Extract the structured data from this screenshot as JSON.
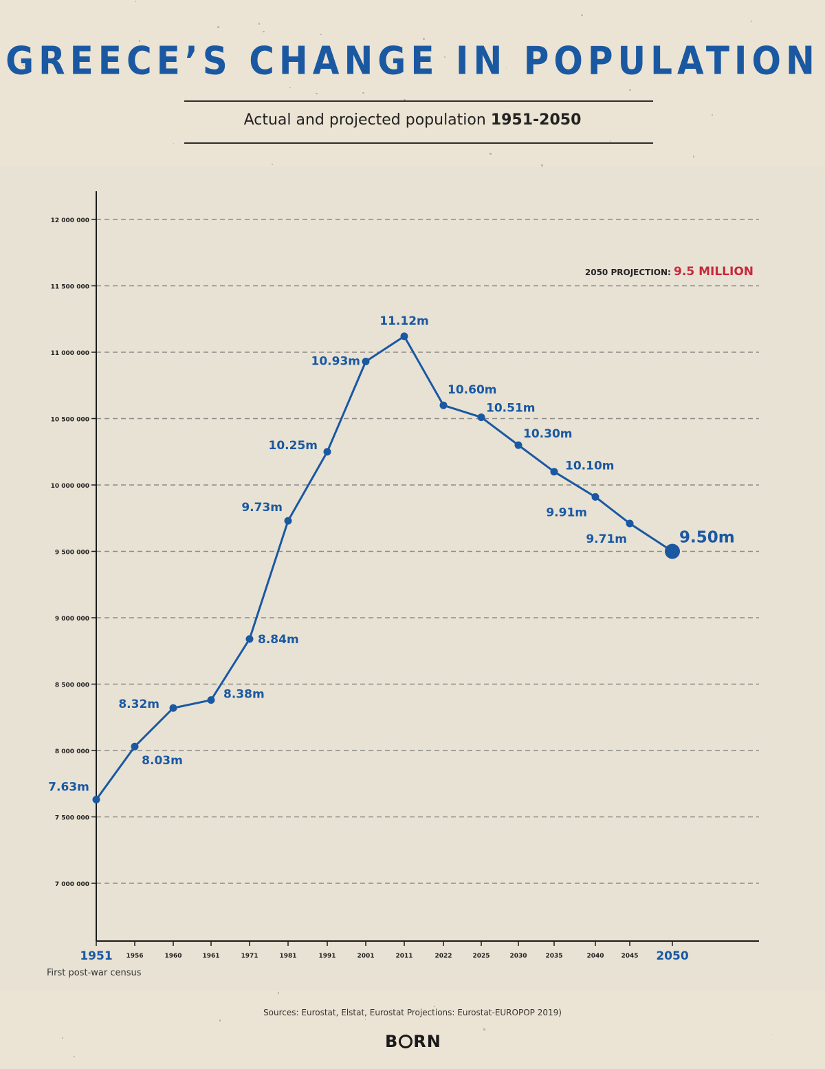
{
  "header": {
    "title": "GREECE’S CHANGE IN POPULATION",
    "subtitle_prefix": "Actual and projected population",
    "subtitle_years": "1951-2050"
  },
  "projection_note": {
    "label": "2050 PROJECTION:",
    "value": "9.5 MILLION"
  },
  "first_census_note": "First post-war census",
  "sources": "Sources: Eurostat, Elstat, Eurostat Projections: Eurostat-EUROPOP 2019)",
  "logo": {
    "pre": "B",
    "post": "RN"
  },
  "colors": {
    "line": "#1a58a2",
    "accent": "#c7283a",
    "axis": "#1a1a1a",
    "grid": "#8c8a85",
    "background": "#ebe3d3"
  },
  "chart_data": {
    "type": "line",
    "categories": [
      "1951",
      "1956",
      "1960",
      "1961",
      "1971",
      "1981",
      "1991",
      "2001",
      "2011",
      "2022",
      "2025",
      "2030",
      "2035",
      "2040",
      "2045",
      "2050"
    ],
    "series": [
      {
        "values": [
          7630000,
          8030000,
          8320000,
          8380000,
          8840000,
          9730000,
          10250000,
          10930000,
          11120000,
          10600000,
          10510000,
          10300000,
          10100000,
          9910000,
          9710000,
          9500000
        ],
        "data_labels": [
          "7.63m",
          "8.03m",
          "8.32m",
          "8.38m",
          "8.84m",
          "9.73m",
          "10.25m",
          "10.93m",
          "11.12m",
          "10.60m",
          "10.51m",
          "10.30m",
          "10.10m",
          "9.91m",
          "9.71m",
          "9.50m"
        ]
      }
    ],
    "yticks": [
      7000000,
      7500000,
      8000000,
      8500000,
      9000000,
      9500000,
      10000000,
      10500000,
      11000000,
      11500000,
      12000000
    ],
    "ytick_labels": [
      "7 000 000",
      "7 500 000",
      "8 000 000",
      "8 500 000",
      "9 000 000",
      "9 500 000",
      "10 000 000",
      "10 500 000",
      "11 000 000",
      "11 500 000",
      "12 000 000"
    ],
    "ylim": [
      6650000,
      12200000
    ],
    "grid": true,
    "highlighted_categories": [
      "1951",
      "2050"
    ]
  }
}
